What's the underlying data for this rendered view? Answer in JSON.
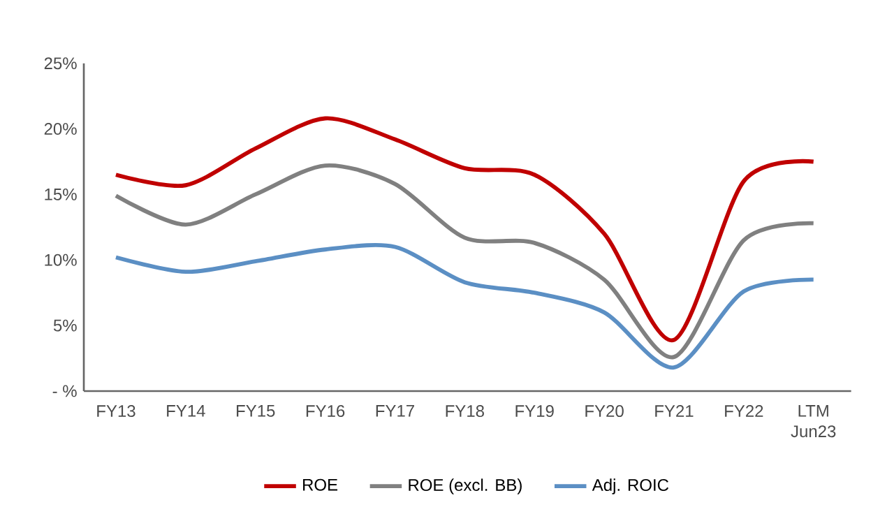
{
  "chart_data": {
    "type": "line",
    "categories": [
      "FY13",
      "FY14",
      "FY15",
      "FY16",
      "FY17",
      "FY18",
      "FY19",
      "FY20",
      "FY21",
      "FY22",
      "LTM Jun23"
    ],
    "series": [
      {
        "name": "ROE",
        "color": "#c00000",
        "values": [
          16.5,
          15.7,
          18.5,
          20.8,
          19.2,
          17.0,
          16.5,
          12.0,
          3.9,
          16.0,
          17.5
        ]
      },
      {
        "name": "ROE (excl. BB)",
        "color": "#808080",
        "values": [
          14.9,
          12.7,
          15.0,
          17.2,
          15.8,
          11.7,
          11.3,
          8.5,
          2.6,
          11.5,
          12.8
        ]
      },
      {
        "name": "Adj. ROIC",
        "color": "#5b8fc4",
        "values": [
          10.2,
          9.1,
          9.9,
          10.8,
          11.0,
          8.3,
          7.5,
          6.0,
          1.8,
          7.6,
          8.5
        ]
      }
    ],
    "ylim": [
      0,
      25
    ],
    "yticks": [
      {
        "value": 0,
        "label": "- %"
      },
      {
        "value": 5,
        "label": "5%"
      },
      {
        "value": 10,
        "label": "10%"
      },
      {
        "value": 15,
        "label": "15%"
      },
      {
        "value": 20,
        "label": "20%"
      },
      {
        "value": 25,
        "label": "25%"
      }
    ],
    "grid": false,
    "legend": "bottom",
    "marker": "none",
    "line_style": "solid"
  }
}
